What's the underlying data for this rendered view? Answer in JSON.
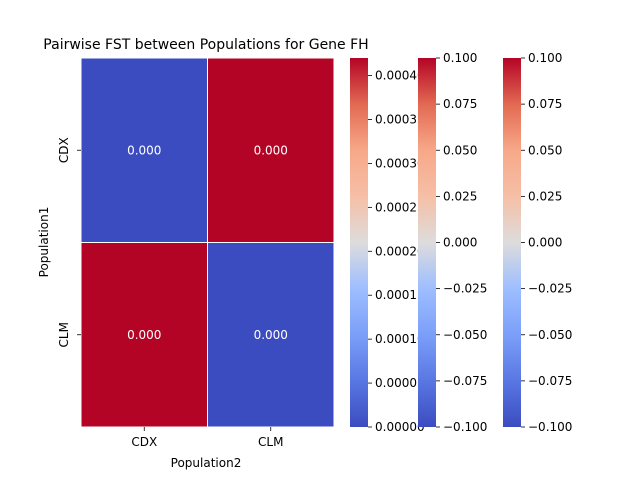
{
  "chart_data": {
    "type": "heatmap",
    "title": "Pairwise FST between Populations for Gene FH",
    "xlabel": "Population2",
    "ylabel": "Population1",
    "x_categories": [
      "CDX",
      "CLM"
    ],
    "y_categories": [
      "CDX",
      "CLM"
    ],
    "cells": [
      {
        "row": 0,
        "col": 0,
        "label": "0.000",
        "fill": "#3b4cc0"
      },
      {
        "row": 0,
        "col": 1,
        "label": "0.000",
        "fill": "#b40426"
      },
      {
        "row": 1,
        "col": 0,
        "label": "0.000",
        "fill": "#b40426"
      },
      {
        "row": 1,
        "col": 1,
        "label": "0.000",
        "fill": "#3b4cc0"
      }
    ],
    "colormap": "coolwarm",
    "colorbars": [
      {
        "ticks": [
          "0.00000",
          "0.00005",
          "0.00010",
          "0.00015",
          "0.00020",
          "0.00025",
          "0.00030",
          "0.00035",
          "0.00040"
        ],
        "range": [
          0,
          0.00042
        ]
      },
      {
        "ticks": [
          "−0.100",
          "−0.075",
          "−0.050",
          "−0.025",
          "0.000",
          "0.025",
          "0.050",
          "0.075",
          "0.100"
        ],
        "range": [
          -0.1,
          0.1
        ]
      },
      {
        "ticks": [
          "−0.100",
          "−0.075",
          "−0.050",
          "−0.025",
          "0.000",
          "0.025",
          "0.050",
          "0.075",
          "0.100"
        ],
        "range": [
          -0.1,
          0.1
        ]
      }
    ],
    "grid": false,
    "legend": "none"
  }
}
